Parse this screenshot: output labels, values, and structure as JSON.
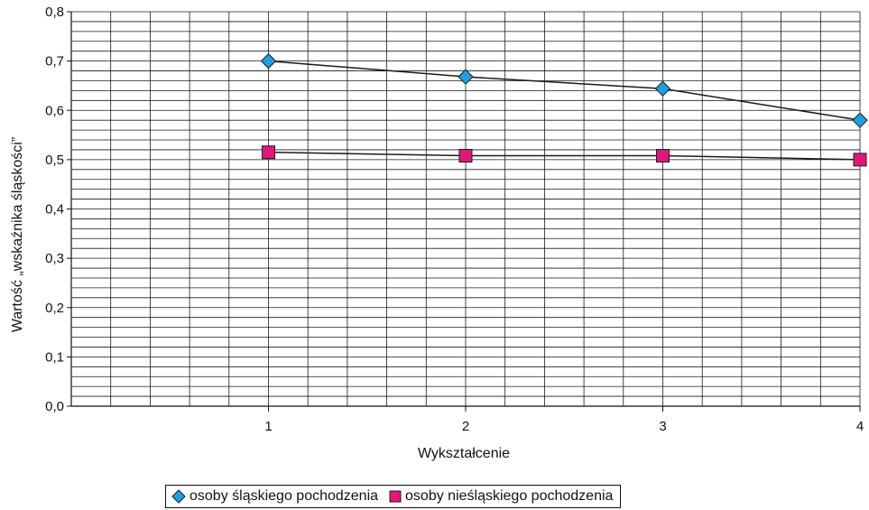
{
  "chart_data": {
    "type": "line",
    "x": [
      1,
      2,
      3,
      4
    ],
    "series": [
      {
        "name": "osoby śląskiego pochodzenia",
        "values": [
          0.7,
          0.668,
          0.644,
          0.58
        ],
        "color": "#1ea0e0",
        "marker": "diamond"
      },
      {
        "name": "osoby nieśląskiego pochodzenia",
        "values": [
          0.515,
          0.508,
          0.508,
          0.5
        ],
        "color": "#e0187a",
        "marker": "square"
      }
    ],
    "xlabel": "Wykształcenie",
    "ylabel": "Wartość „wskaźnika śląskości”",
    "xlim": [
      0,
      4
    ],
    "ylim": [
      0,
      0.8
    ],
    "yticks": [
      "0,0",
      "0,1",
      "0,2",
      "0,3",
      "0,4",
      "0,5",
      "0,6",
      "0,7",
      "0,8"
    ],
    "xticks": [
      "1",
      "2",
      "3",
      "4"
    ],
    "grid": true,
    "legend_position": "bottom"
  }
}
